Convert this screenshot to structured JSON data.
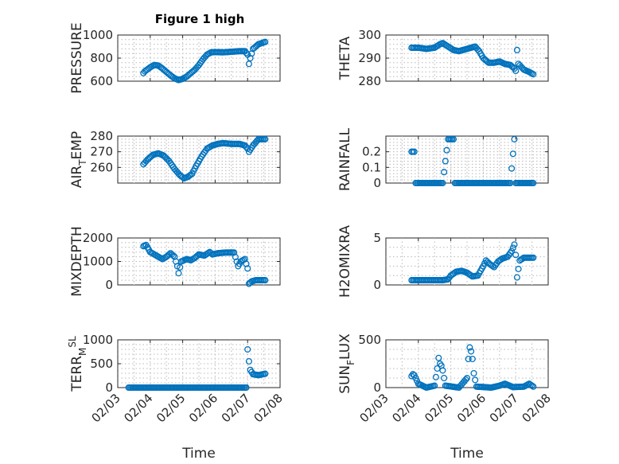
{
  "figure": {
    "title": "Figure 1 high",
    "series_color": "#0072BD",
    "x_axis": {
      "label": "Time",
      "tick_labels": [
        "02/03",
        "02/04",
        "02/05",
        "02/06",
        "02/07",
        "02/08"
      ],
      "xlim": [
        "02/03",
        "02/08"
      ]
    }
  },
  "chart_data": [
    {
      "type": "scatter",
      "ylabel": "PRESSURE",
      "ylim": [
        600,
        1000
      ],
      "yticks": [
        600,
        800,
        1000
      ],
      "ytick_labels": [
        "600",
        "800",
        "1000"
      ],
      "x_range": [
        "02/03 19:00",
        "02/07 13:00"
      ],
      "points": [
        [
          "02/03 19:00",
          670
        ],
        [
          "02/03 20:00",
          685
        ],
        [
          "02/04 00:00",
          720
        ],
        [
          "02/04 03:00",
          740
        ],
        [
          "02/04 06:00",
          735
        ],
        [
          "02/04 09:00",
          710
        ],
        [
          "02/04 12:00",
          680
        ],
        [
          "02/04 15:00",
          650
        ],
        [
          "02/04 18:00",
          625
        ],
        [
          "02/04 21:00",
          610
        ],
        [
          "02/05 00:00",
          620
        ],
        [
          "02/05 03:00",
          640
        ],
        [
          "02/05 06:00",
          670
        ],
        [
          "02/05 09:00",
          700
        ],
        [
          "02/05 12:00",
          740
        ],
        [
          "02/05 15:00",
          790
        ],
        [
          "02/05 18:00",
          830
        ],
        [
          "02/05 21:00",
          850
        ],
        [
          "02/06 00:00",
          852
        ],
        [
          "02/06 06:00",
          850
        ],
        [
          "02/06 12:00",
          855
        ],
        [
          "02/06 18:00",
          860
        ],
        [
          "02/06 22:00",
          860
        ],
        [
          "02/07 00:00",
          830
        ],
        [
          "02/07 01:00",
          750
        ],
        [
          "02/07 02:00",
          800
        ],
        [
          "02/07 04:00",
          880
        ],
        [
          "02/07 08:00",
          920
        ],
        [
          "02/07 13:00",
          940
        ]
      ]
    },
    {
      "type": "scatter",
      "ylabel": "THETA",
      "ylim": [
        280,
        300
      ],
      "yticks": [
        280,
        290,
        300
      ],
      "ytick_labels": [
        "280",
        "290",
        "300"
      ],
      "x_range": [
        "02/03 19:00",
        "02/07 13:00"
      ],
      "points": [
        [
          "02/03 19:00",
          294.5
        ],
        [
          "02/04 00:00",
          294.5
        ],
        [
          "02/04 06:00",
          294
        ],
        [
          "02/04 12:00",
          294.5
        ],
        [
          "02/04 16:00",
          296
        ],
        [
          "02/04 18:00",
          296.5
        ],
        [
          "02/04 22:00",
          295
        ],
        [
          "02/05 02:00",
          293.5
        ],
        [
          "02/05 06:00",
          293
        ],
        [
          "02/05 12:00",
          294
        ],
        [
          "02/05 18:00",
          295
        ],
        [
          "02/05 21:00",
          293
        ],
        [
          "02/06 00:00",
          290
        ],
        [
          "02/06 04:00",
          288
        ],
        [
          "02/06 08:00",
          288
        ],
        [
          "02/06 12:00",
          288.5
        ],
        [
          "02/06 16:00",
          287.5
        ],
        [
          "02/06 20:00",
          287
        ],
        [
          "02/06 23:00",
          285.5
        ],
        [
          "02/07 00:00",
          284.5
        ],
        [
          "02/07 01:00",
          293.5
        ],
        [
          "02/07 02:00",
          287.5
        ],
        [
          "02/07 06:00",
          285
        ],
        [
          "02/07 10:00",
          284
        ],
        [
          "02/07 13:00",
          283
        ]
      ]
    },
    {
      "type": "scatter",
      "ylabel_main": "AIR",
      "ylabel_sub": "T",
      "ylabel_rest": "EMP",
      "ylim": [
        250,
        280
      ],
      "yticks": [
        260,
        270,
        280
      ],
      "ytick_labels": [
        "260",
        "270",
        "280"
      ],
      "x_range": [
        "02/03 19:00",
        "02/07 13:00"
      ],
      "points": [
        [
          "02/03 19:00",
          262
        ],
        [
          "02/03 22:00",
          265
        ],
        [
          "02/04 02:00",
          268
        ],
        [
          "02/04 06:00",
          269
        ],
        [
          "02/04 10:00",
          267.5
        ],
        [
          "02/04 14:00",
          264
        ],
        [
          "02/04 18:00",
          259
        ],
        [
          "02/04 22:00",
          255
        ],
        [
          "02/05 01:00",
          253
        ],
        [
          "02/05 04:00",
          254
        ],
        [
          "02/05 07:00",
          256
        ],
        [
          "02/05 10:00",
          261
        ],
        [
          "02/05 14:00",
          267
        ],
        [
          "02/05 18:00",
          272
        ],
        [
          "02/05 22:00",
          274
        ],
        [
          "02/06 02:00",
          275
        ],
        [
          "02/06 06:00",
          275.5
        ],
        [
          "02/06 12:00",
          275
        ],
        [
          "02/06 18:00",
          275
        ],
        [
          "02/06 22:00",
          274
        ],
        [
          "02/07 00:00",
          272
        ],
        [
          "02/07 01:00",
          270
        ],
        [
          "02/07 04:00",
          274
        ],
        [
          "02/07 08:00",
          278
        ],
        [
          "02/07 13:00",
          278
        ]
      ]
    },
    {
      "type": "scatter",
      "ylabel": "RAINFALL",
      "ylim": [
        0,
        0.3
      ],
      "yticks": [
        0,
        0.1,
        0.2
      ],
      "ytick_labels": [
        "0",
        "0.1",
        "0.2"
      ],
      "x_range": [
        "02/03 19:00",
        "02/07 13:00"
      ],
      "points": [
        [
          "02/03 19:00",
          0.2
        ],
        [
          "02/03 20:00",
          0.2
        ],
        [
          "02/03 21:00",
          0.2
        ],
        [
          "02/03 22:00",
          0
        ],
        [
          "02/04 06:00",
          0
        ],
        [
          "02/04 12:00",
          0
        ],
        [
          "02/04 18:00",
          0
        ],
        [
          "02/04 22:00",
          0.28
        ],
        [
          "02/05 00:00",
          0.28
        ],
        [
          "02/05 02:00",
          0.28
        ],
        [
          "02/05 03:00",
          0
        ],
        [
          "02/05 12:00",
          0
        ],
        [
          "02/05 18:00",
          0
        ],
        [
          "02/06 00:00",
          0
        ],
        [
          "02/06 12:00",
          0
        ],
        [
          "02/06 20:00",
          0
        ],
        [
          "02/06 23:00",
          0.28
        ],
        [
          "02/07 00:00",
          0
        ],
        [
          "02/07 06:00",
          0
        ],
        [
          "02/07 13:00",
          0
        ]
      ]
    },
    {
      "type": "scatter",
      "ylabel": "MIXDEPTH",
      "ylim": [
        0,
        2000
      ],
      "yticks": [
        0,
        1000,
        2000
      ],
      "ytick_labels": [
        "0",
        "1000",
        "2000"
      ],
      "x_range": [
        "02/03 19:00",
        "02/07 13:00"
      ],
      "points": [
        [
          "02/03 19:00",
          1650
        ],
        [
          "02/03 21:00",
          1700
        ],
        [
          "02/04 00:00",
          1400
        ],
        [
          "02/04 03:00",
          1300
        ],
        [
          "02/04 06:00",
          1200
        ],
        [
          "02/04 09:00",
          1100
        ],
        [
          "02/04 12:00",
          1200
        ],
        [
          "02/04 15:00",
          1350
        ],
        [
          "02/04 18:00",
          1200
        ],
        [
          "02/04 20:00",
          800
        ],
        [
          "02/04 21:00",
          500
        ],
        [
          "02/04 23:00",
          1000
        ],
        [
          "02/05 03:00",
          1100
        ],
        [
          "02/05 06:00",
          1050
        ],
        [
          "02/05 09:00",
          1150
        ],
        [
          "02/05 12:00",
          1300
        ],
        [
          "02/05 16:00",
          1250
        ],
        [
          "02/05 20:00",
          1400
        ],
        [
          "02/05 22:00",
          1300
        ],
        [
          "02/06 02:00",
          1350
        ],
        [
          "02/06 08:00",
          1380
        ],
        [
          "02/06 14:00",
          1380
        ],
        [
          "02/06 17:00",
          800
        ],
        [
          "02/06 19:00",
          1000
        ],
        [
          "02/06 22:00",
          1100
        ],
        [
          "02/07 00:00",
          700
        ],
        [
          "02/07 01:00",
          50
        ],
        [
          "02/07 03:00",
          150
        ],
        [
          "02/07 06:00",
          200
        ],
        [
          "02/07 13:00",
          200
        ]
      ]
    },
    {
      "type": "scatter",
      "ylabel": "H2OMIXRA",
      "ylim": [
        0,
        5
      ],
      "yticks": [
        0,
        5
      ],
      "ytick_labels": [
        "0",
        "5"
      ],
      "x_range": [
        "02/03 19:00",
        "02/07 13:00"
      ],
      "points": [
        [
          "02/03 19:00",
          0.5
        ],
        [
          "02/04 06:00",
          0.5
        ],
        [
          "02/04 18:00",
          0.5
        ],
        [
          "02/04 22:00",
          0.6
        ],
        [
          "02/05 00:00",
          1.0
        ],
        [
          "02/05 04:00",
          1.4
        ],
        [
          "02/05 08:00",
          1.5
        ],
        [
          "02/05 12:00",
          1.3
        ],
        [
          "02/05 16:00",
          0.9
        ],
        [
          "02/05 20:00",
          1.0
        ],
        [
          "02/06 00:00",
          2.0
        ],
        [
          "02/06 02:00",
          2.6
        ],
        [
          "02/06 05:00",
          2.2
        ],
        [
          "02/06 08:00",
          1.9
        ],
        [
          "02/06 11:00",
          2.5
        ],
        [
          "02/06 14:00",
          2.8
        ],
        [
          "02/06 18:00",
          3.0
        ],
        [
          "02/06 21:00",
          3.6
        ],
        [
          "02/06 23:00",
          4.3
        ],
        [
          "02/07 00:00",
          3.2
        ],
        [
          "02/07 01:00",
          0.8
        ],
        [
          "02/07 03:00",
          2.6
        ],
        [
          "02/07 06:00",
          2.9
        ],
        [
          "02/07 13:00",
          2.9
        ]
      ]
    },
    {
      "type": "scatter",
      "ylabel_main": "TERR",
      "ylabel_sub": "M",
      "ylabel_sup": "SL",
      "ylim": [
        0,
        1000
      ],
      "yticks": [
        0,
        500,
        1000
      ],
      "ytick_labels": [
        "0",
        "500",
        "1000"
      ],
      "x_range": [
        "02/03 08:00",
        "02/07 13:00"
      ],
      "points": [
        [
          "02/03 08:00",
          0
        ],
        [
          "02/04 00:00",
          0
        ],
        [
          "02/04 12:00",
          0
        ],
        [
          "02/05 00:00",
          0
        ],
        [
          "02/05 12:00",
          0
        ],
        [
          "02/06 00:00",
          0
        ],
        [
          "02/06 12:00",
          0
        ],
        [
          "02/06 20:00",
          0
        ],
        [
          "02/06 23:00",
          0
        ],
        [
          "02/07 00:00",
          800
        ],
        [
          "02/07 01:00",
          550
        ],
        [
          "02/07 02:00",
          370
        ],
        [
          "02/07 04:00",
          280
        ],
        [
          "02/07 08:00",
          260
        ],
        [
          "02/07 13:00",
          290
        ]
      ]
    },
    {
      "type": "scatter",
      "ylabel_main": "SUN",
      "ylabel_sub": "F",
      "ylabel_rest": "LUX",
      "ylim": [
        0,
        500
      ],
      "yticks": [
        0,
        500
      ],
      "ytick_labels": [
        "0",
        "500"
      ],
      "x_range": [
        "02/03 19:00",
        "02/07 13:00"
      ],
      "points": [
        [
          "02/03 19:00",
          120
        ],
        [
          "02/03 20:00",
          140
        ],
        [
          "02/03 21:00",
          130
        ],
        [
          "02/04 00:00",
          40
        ],
        [
          "02/04 06:00",
          0
        ],
        [
          "02/04 12:00",
          20
        ],
        [
          "02/04 14:00",
          200
        ],
        [
          "02/04 15:00",
          310
        ],
        [
          "02/04 16:00",
          250
        ],
        [
          "02/04 17:00",
          230
        ],
        [
          "02/04 18:00",
          180
        ],
        [
          "02/04 20:00",
          20
        ],
        [
          "02/05 06:00",
          0
        ],
        [
          "02/05 12:00",
          100
        ],
        [
          "02/05 13:00",
          300
        ],
        [
          "02/05 14:00",
          420
        ],
        [
          "02/05 15:00",
          380
        ],
        [
          "02/05 16:00",
          300
        ],
        [
          "02/05 17:00",
          150
        ],
        [
          "02/05 19:00",
          10
        ],
        [
          "02/06 06:00",
          0
        ],
        [
          "02/06 12:00",
          20
        ],
        [
          "02/06 16:00",
          40
        ],
        [
          "02/06 22:00",
          5
        ],
        [
          "02/07 06:00",
          10
        ],
        [
          "02/07 10:00",
          40
        ],
        [
          "02/07 13:00",
          10
        ]
      ]
    }
  ]
}
